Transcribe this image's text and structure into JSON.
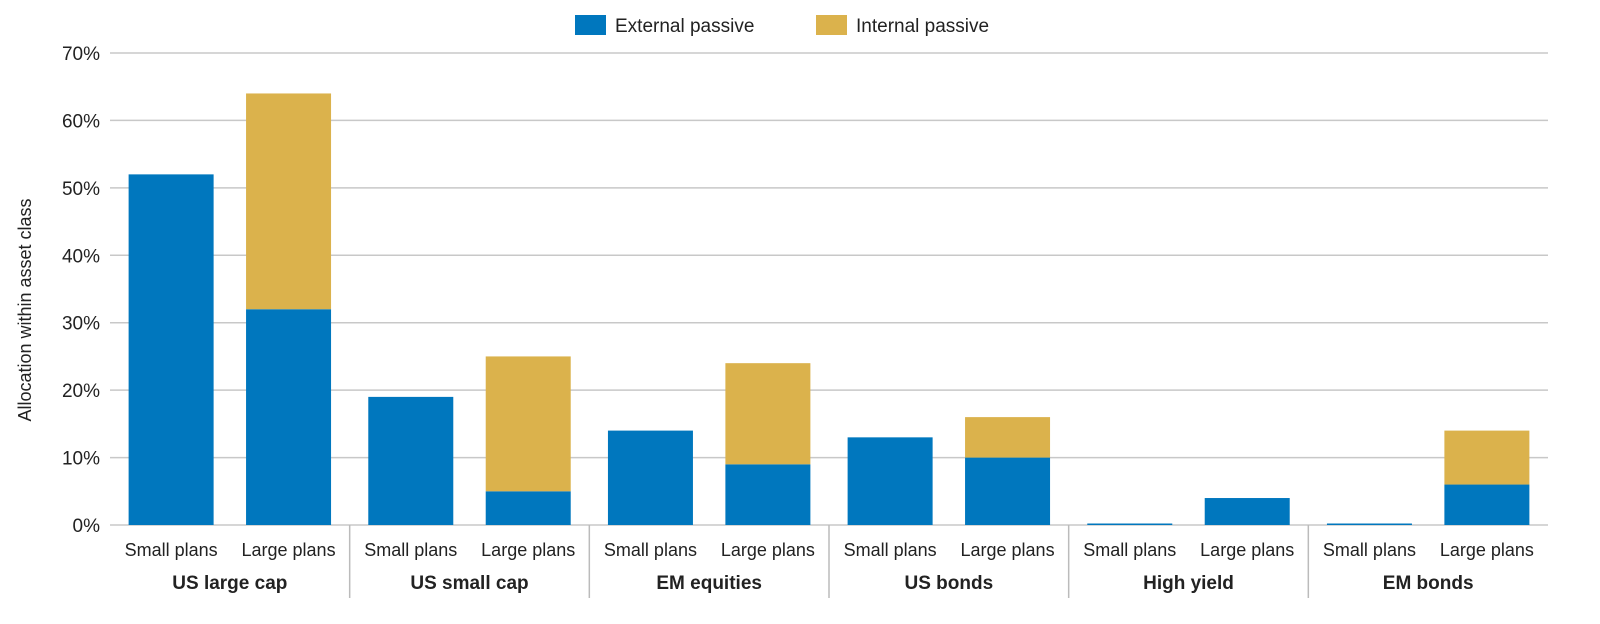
{
  "chart_data": {
    "type": "bar",
    "stacked": true,
    "ylabel": "Allocation within asset class",
    "ylim": [
      0,
      70
    ],
    "yticks": [
      "0%",
      "10%",
      "20%",
      "30%",
      "40%",
      "50%",
      "60%",
      "70%"
    ],
    "grid": true,
    "legend_position": "top-center",
    "groups": [
      {
        "label": "US large cap",
        "categories": [
          "Small plans",
          "Large plans"
        ]
      },
      {
        "label": "US small cap",
        "categories": [
          "Small plans",
          "Large plans"
        ]
      },
      {
        "label": "EM equities",
        "categories": [
          "Small plans",
          "Large plans"
        ]
      },
      {
        "label": "US bonds",
        "categories": [
          "Small plans",
          "Large plans"
        ]
      },
      {
        "label": "High yield",
        "categories": [
          "Small plans",
          "Large plans"
        ]
      },
      {
        "label": "EM bonds",
        "categories": [
          "Small plans",
          "Large plans"
        ]
      }
    ],
    "series": [
      {
        "name": "External passive",
        "color": "#0077be",
        "values": [
          52,
          32,
          19,
          5,
          14,
          9,
          13,
          10,
          0,
          4,
          0,
          6
        ]
      },
      {
        "name": "Internal passive",
        "color": "#dbb24c",
        "values": [
          0,
          32,
          0,
          20,
          0,
          15,
          0,
          6,
          0,
          0,
          0,
          8
        ]
      }
    ]
  }
}
